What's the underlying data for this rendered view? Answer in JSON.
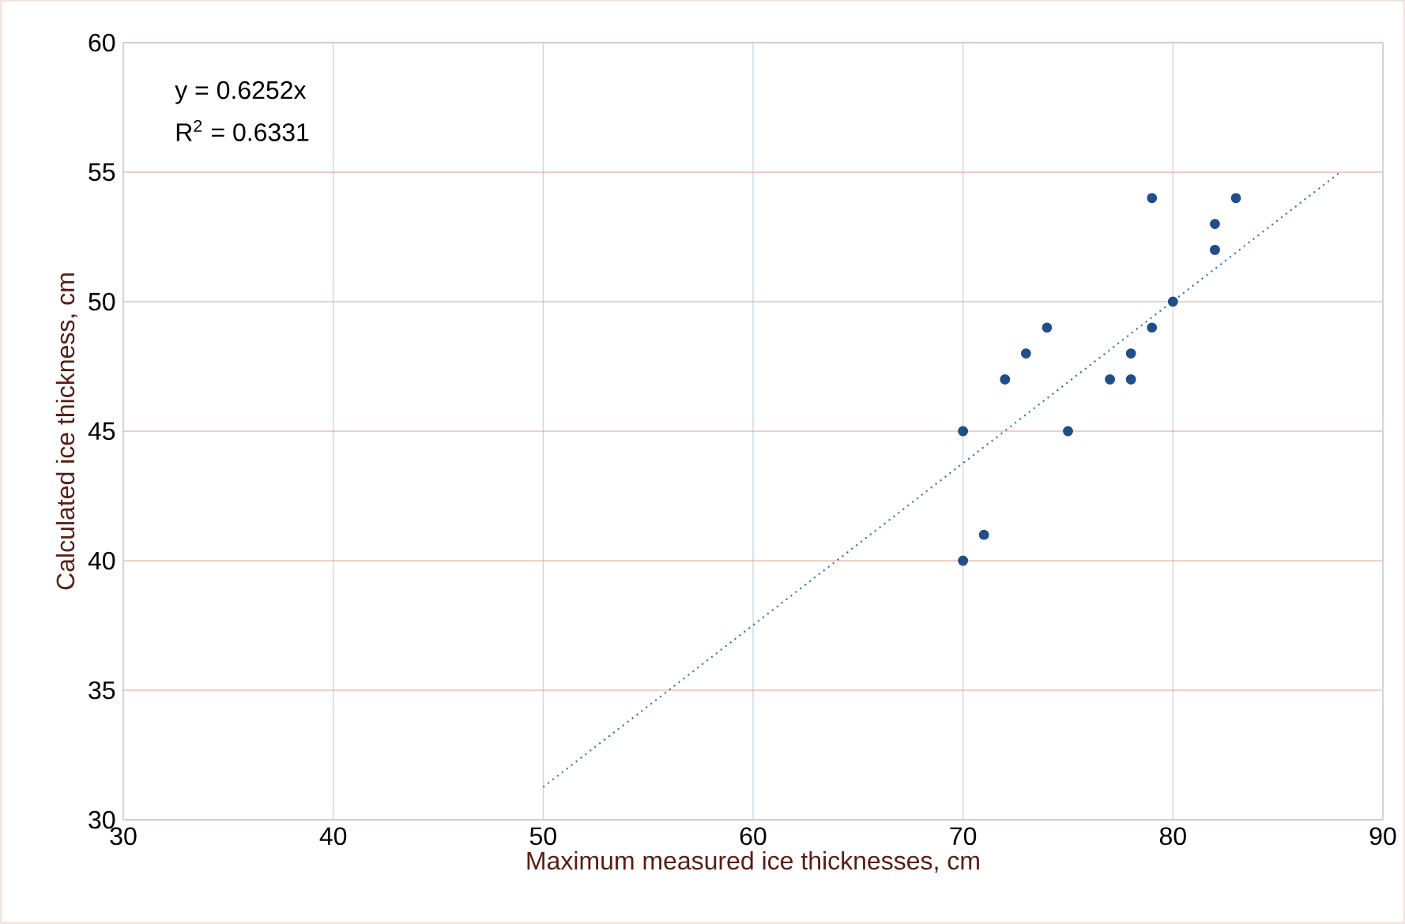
{
  "chart_data": {
    "type": "scatter",
    "xlabel": "Maximum measured ice thicknesses, cm",
    "ylabel": "Calculated ice thickness, cm",
    "annotations": [
      "y = 0.6252x",
      "R$^{2}$ = 0.6331"
    ],
    "xlim": [
      30,
      90
    ],
    "ylim": [
      30,
      60
    ],
    "xticks": [
      30,
      40,
      50,
      60,
      70,
      80,
      90
    ],
    "yticks": [
      30,
      35,
      40,
      45,
      50,
      55,
      60
    ],
    "grid": true,
    "series": [
      {
        "type": "scatter",
        "color": "#1f4e89",
        "marker": "circle",
        "x": [
          70,
          70,
          71,
          72,
          73,
          74,
          75,
          77,
          78,
          78,
          79,
          79,
          80,
          82,
          82,
          83
        ],
        "values": [
          45,
          40,
          41,
          47,
          48,
          49,
          45,
          47,
          48,
          47,
          54,
          49,
          50,
          53,
          52,
          54
        ]
      },
      {
        "type": "line",
        "color": "#2e75b6",
        "marker": "none",
        "line_style": "dotted",
        "x": [
          50,
          88
        ],
        "values": [
          31.26,
          55.02
        ]
      }
    ]
  }
}
